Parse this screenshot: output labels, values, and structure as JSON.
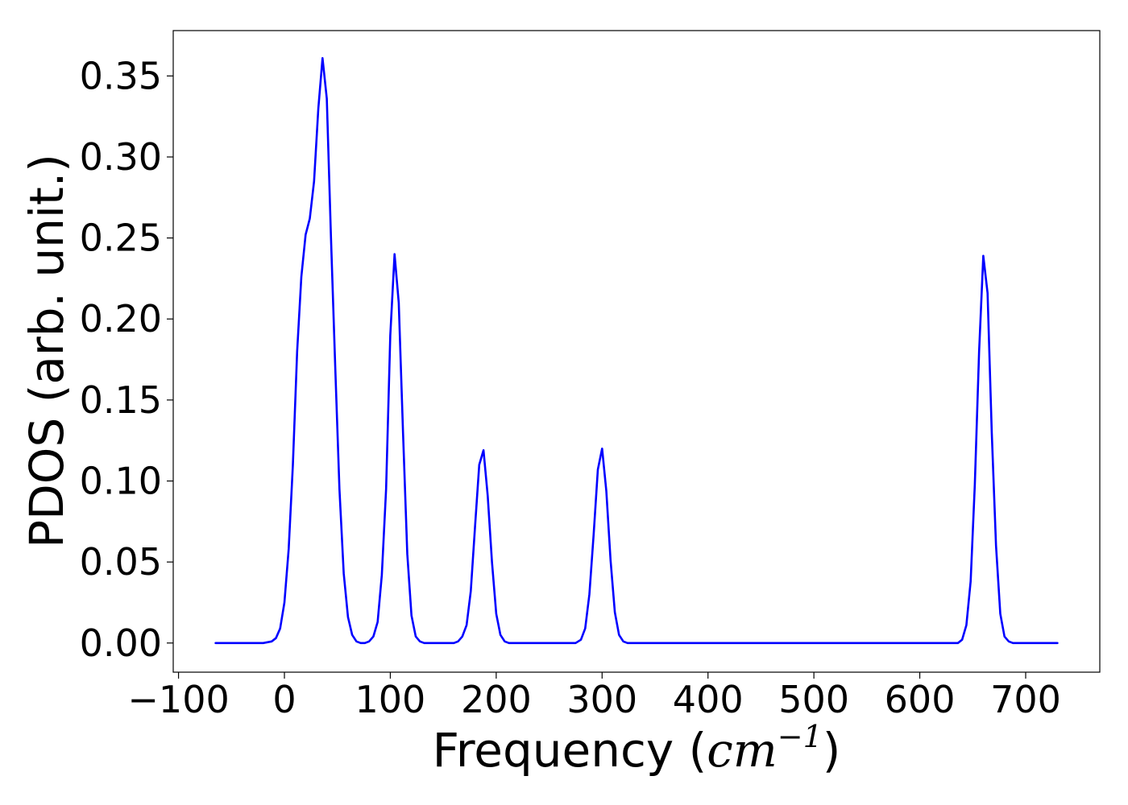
{
  "chart_data": {
    "type": "line",
    "title": "",
    "xlabel": {
      "prefix": "Frequency (",
      "unit": "cm",
      "exponent": "−1",
      "suffix": ")"
    },
    "ylabel": "PDOS (arb. unit.)",
    "xlim": [
      -105,
      770
    ],
    "ylim": [
      -0.018,
      0.378
    ],
    "grid": false,
    "legend": "none",
    "x_ticks": [
      -100,
      0,
      100,
      200,
      300,
      400,
      500,
      600,
      700
    ],
    "x_tick_labels": [
      "−100",
      "0",
      "100",
      "200",
      "300",
      "400",
      "500",
      "600",
      "700"
    ],
    "y_ticks": [
      0.0,
      0.05,
      0.1,
      0.15,
      0.2,
      0.25,
      0.3,
      0.35
    ],
    "y_tick_labels": [
      "0.00",
      "0.05",
      "0.10",
      "0.15",
      "0.20",
      "0.25",
      "0.30",
      "0.35"
    ],
    "series": [
      {
        "color": "#0000ff",
        "x": [
          -65,
          -20,
          -12,
          -8,
          -4,
          0,
          4,
          8,
          12,
          16,
          20,
          24,
          28,
          32,
          36,
          40,
          44,
          48,
          52,
          56,
          60,
          64,
          68,
          72,
          76,
          80,
          84,
          88,
          92,
          96,
          100,
          104,
          108,
          112,
          116,
          120,
          124,
          128,
          132,
          140,
          160,
          164,
          168,
          172,
          176,
          180,
          184,
          188,
          192,
          196,
          200,
          204,
          208,
          212,
          220,
          275,
          280,
          284,
          288,
          292,
          296,
          300,
          304,
          308,
          312,
          316,
          320,
          324,
          328,
          336,
          636,
          640,
          644,
          648,
          652,
          656,
          660,
          664,
          668,
          672,
          676,
          680,
          684,
          688,
          692,
          730
        ],
        "y": [
          0.0,
          0.0,
          0.001,
          0.003,
          0.009,
          0.025,
          0.058,
          0.11,
          0.18,
          0.226,
          0.252,
          0.262,
          0.285,
          0.33,
          0.361,
          0.336,
          0.25,
          0.17,
          0.095,
          0.043,
          0.016,
          0.005,
          0.001,
          0.0,
          0.0,
          0.001,
          0.004,
          0.013,
          0.042,
          0.095,
          0.19,
          0.24,
          0.21,
          0.13,
          0.055,
          0.017,
          0.004,
          0.001,
          0.0,
          0.0,
          0.0,
          0.001,
          0.004,
          0.011,
          0.032,
          0.072,
          0.11,
          0.119,
          0.091,
          0.05,
          0.018,
          0.005,
          0.001,
          0.0,
          0.0,
          0.0,
          0.002,
          0.009,
          0.03,
          0.067,
          0.107,
          0.12,
          0.094,
          0.051,
          0.019,
          0.005,
          0.001,
          0.0,
          0.0,
          0.0,
          0.0,
          0.002,
          0.011,
          0.038,
          0.098,
          0.18,
          0.239,
          0.216,
          0.13,
          0.06,
          0.018,
          0.004,
          0.001,
          0.0,
          0.0,
          0.0
        ]
      }
    ]
  }
}
